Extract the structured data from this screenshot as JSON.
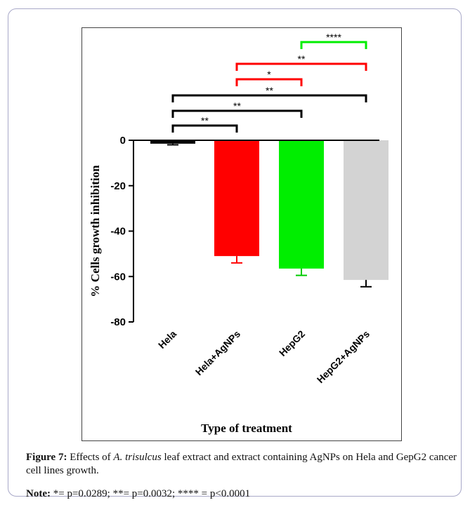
{
  "caption": {
    "label": "Figure 7:",
    "text_before_italic": " Effects of ",
    "italic_text": "A. trisulcus",
    "text_after_italic": " leaf extract and extract containing AgNPs on Hela and GepG2 cancer cell lines growth."
  },
  "note": {
    "label": "Note:",
    "text": " *= p=0.0289; **= p=0.0032; **** = p<0.0001"
  },
  "chart_data": {
    "type": "bar",
    "title": "",
    "xlabel": "Type of treatment",
    "ylabel": "% Cells growth inhibition",
    "ylim": [
      -80,
      0
    ],
    "yticks": [
      0,
      -20,
      -40,
      -60,
      -80
    ],
    "categories": [
      "Hela",
      "Hela+AgNPs",
      "HepG2",
      "HepG2+AgNPs"
    ],
    "values": [
      -1.5,
      -51,
      -56.5,
      -61.5
    ],
    "error_lower": [
      0.5,
      3,
      3,
      3
    ],
    "colors": [
      "#000000",
      "#ff0000",
      "#00ee00",
      "#d3d3d3"
    ],
    "grid": false,
    "significance": [
      {
        "from": 0,
        "to": 1,
        "label": "**",
        "color": "#000000"
      },
      {
        "from": 0,
        "to": 2,
        "label": "**",
        "color": "#000000"
      },
      {
        "from": 0,
        "to": 3,
        "label": "**",
        "color": "#000000"
      },
      {
        "from": 1,
        "to": 2,
        "label": "*",
        "color": "#ff0000"
      },
      {
        "from": 1,
        "to": 3,
        "label": "**",
        "color": "#ff0000"
      },
      {
        "from": 2,
        "to": 3,
        "label": "****",
        "color": "#00ee00"
      }
    ]
  }
}
